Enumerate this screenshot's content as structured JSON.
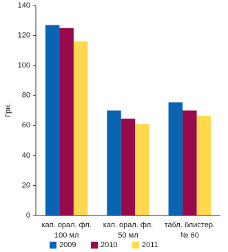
{
  "chart_data": {
    "type": "bar",
    "y_label": "Грн.",
    "categories": [
      [
        "кап. орал. фл.",
        "100 мл"
      ],
      [
        "кап. орал. фл.",
        "50 мл"
      ],
      [
        "табл. блистер.",
        "№ 60"
      ]
    ],
    "series": [
      {
        "name": "2009",
        "color": "#0a64b4",
        "values": [
          127,
          70,
          75.5
        ]
      },
      {
        "name": "2010",
        "color": "#990a4b",
        "values": [
          125,
          64.5,
          70
        ]
      },
      {
        "name": "2011",
        "color": "#ffd84d",
        "values": [
          116,
          61,
          66.5
        ]
      }
    ],
    "ylim": [
      0,
      140
    ],
    "yticks": [
      0,
      20,
      40,
      60,
      80,
      100,
      120,
      140
    ],
    "grid": false
  }
}
